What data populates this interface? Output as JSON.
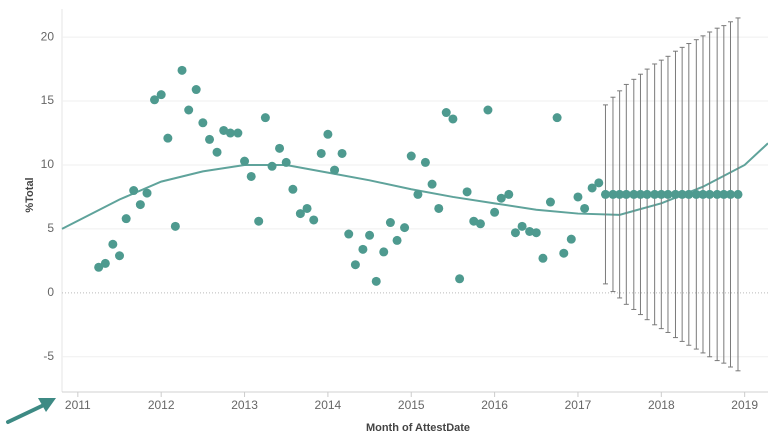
{
  "chart_data": {
    "type": "scatter",
    "x_label": "Month of AttestDate",
    "y_label": "%Total",
    "xlim": [
      2010.81,
      2019.28
    ],
    "xticks": [
      2011,
      2012,
      2013,
      2014,
      2015,
      2016,
      2017,
      2018,
      2019
    ],
    "ylim": [
      -7.6,
      22.2
    ],
    "yticks": [
      -5,
      0,
      5,
      10,
      15,
      20
    ],
    "grid": true,
    "color": "#4e9a8f",
    "trend_color": "#5fa39b",
    "error_color": "#7a7a7a",
    "actual": {
      "x": [
        2011.25,
        2011.33,
        2011.42,
        2011.5,
        2011.58,
        2011.67,
        2011.75,
        2011.83,
        2011.92,
        2012,
        2012.08,
        2012.17,
        2012.25,
        2012.33,
        2012.42,
        2012.5,
        2012.58,
        2012.67,
        2012.75,
        2012.83,
        2012.92,
        2013,
        2013.08,
        2013.17,
        2013.25,
        2013.33,
        2013.42,
        2013.5,
        2013.58,
        2013.67,
        2013.75,
        2013.83,
        2013.92,
        2014,
        2014.08,
        2014.17,
        2014.25,
        2014.33,
        2014.42,
        2014.5,
        2014.58,
        2014.67,
        2014.75,
        2014.83,
        2014.92,
        2015,
        2015.08,
        2015.17,
        2015.25,
        2015.33,
        2015.42,
        2015.5,
        2015.58,
        2015.67,
        2015.75,
        2015.83,
        2015.92,
        2016,
        2016.08,
        2016.17,
        2016.25,
        2016.33,
        2016.42,
        2016.5,
        2016.58,
        2016.67,
        2016.75,
        2016.83,
        2016.92,
        2017,
        2017.08,
        2017.17,
        2017.25
      ],
      "values": [
        2.0,
        2.3,
        3.8,
        2.9,
        5.8,
        8.0,
        6.9,
        7.8,
        15.1,
        15.5,
        12.1,
        5.2,
        17.4,
        14.3,
        15.9,
        13.3,
        12.0,
        11.0,
        12.7,
        12.5,
        12.5,
        10.3,
        9.1,
        5.6,
        13.7,
        9.9,
        11.3,
        10.2,
        8.1,
        6.2,
        6.6,
        5.7,
        10.9,
        12.4,
        9.6,
        10.9,
        4.6,
        2.2,
        3.4,
        4.5,
        0.9,
        3.2,
        5.5,
        4.1,
        5.1,
        10.7,
        7.7,
        10.2,
        8.5,
        6.6,
        14.1,
        13.6,
        1.1,
        7.9,
        5.6,
        5.4,
        14.3,
        6.3,
        7.4,
        7.7,
        4.7,
        5.2,
        4.8,
        4.7,
        2.7,
        7.1,
        13.7,
        3.1,
        4.2,
        7.5,
        6.6,
        8.2,
        8.6
      ]
    },
    "forecast": {
      "x": [
        2017.33,
        2017.42,
        2017.5,
        2017.58,
        2017.67,
        2017.75,
        2017.83,
        2017.92,
        2018,
        2018.08,
        2018.17,
        2018.25,
        2018.33,
        2018.42,
        2018.5,
        2018.58,
        2018.67,
        2018.75,
        2018.83,
        2018.92
      ],
      "values": [
        7.7,
        7.7,
        7.7,
        7.7,
        7.7,
        7.7,
        7.7,
        7.7,
        7.7,
        7.7,
        7.7,
        7.7,
        7.7,
        7.7,
        7.7,
        7.7,
        7.7,
        7.7,
        7.7,
        7.7
      ],
      "errors": [
        7.0,
        7.6,
        8.1,
        8.6,
        9.0,
        9.4,
        9.8,
        10.2,
        10.5,
        10.8,
        11.2,
        11.5,
        11.8,
        12.1,
        12.4,
        12.7,
        13.0,
        13.2,
        13.5,
        13.8
      ]
    },
    "trend": {
      "x": [
        2010.81,
        2011.5,
        2012,
        2012.5,
        2013,
        2013.5,
        2014,
        2014.5,
        2015,
        2015.5,
        2016,
        2016.5,
        2017,
        2017.5,
        2018,
        2018.5,
        2019,
        2019.28
      ],
      "values": [
        5.0,
        7.3,
        8.7,
        9.5,
        10.0,
        10.0,
        9.4,
        8.8,
        8.1,
        7.5,
        7.0,
        6.5,
        6.2,
        6.1,
        7.0,
        8.3,
        10.0,
        11.7
      ]
    }
  }
}
